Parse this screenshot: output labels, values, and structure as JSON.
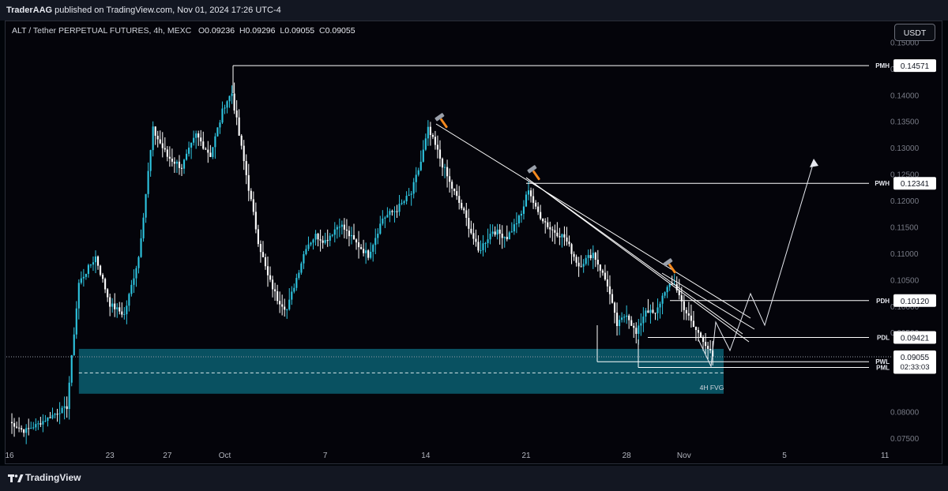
{
  "header": {
    "publisher": "TraderAAG",
    "published_text": "published on TradingView.com, Nov 01, 2024 17:26 UTC-4"
  },
  "symbol_bar": {
    "symbol": "ALT / Tether PERPETUAL FUTURES, 4h, MEXC",
    "open_key": "O",
    "open": "0.09236",
    "high_key": "H",
    "high": "0.09296",
    "low_key": "L",
    "low": "0.09055",
    "close_key": "C",
    "close": "0.09055"
  },
  "currency_button": "USDT",
  "footer": {
    "brand": "TradingView"
  },
  "colors": {
    "bg": "#04040a",
    "candle_up": "#2ec5e0",
    "candle_down": "#ffffff",
    "fvg_zone": "#0a5a6a",
    "lines": "#ffffff",
    "hammer_handle": "#f58a1f"
  },
  "chart_data": {
    "type": "candlestick",
    "timeframe": "4h",
    "ylim": [
      0.073,
      0.1535
    ],
    "y_ticks": [
      "0.15000",
      "0.14500",
      "0.14000",
      "0.13500",
      "0.13000",
      "0.12500",
      "0.12000",
      "0.11500",
      "0.11000",
      "0.10500",
      "0.10000",
      "0.09500",
      "0.08000",
      "0.07500"
    ],
    "x_ticks": [
      "16",
      "23",
      "27",
      "Oct",
      "7",
      "14",
      "21",
      "28",
      "Nov",
      "5",
      "11"
    ],
    "x_tick_index": [
      0,
      42,
      66,
      90,
      132,
      174,
      216,
      258,
      282,
      324,
      366
    ],
    "last_index": 294,
    "approx_close_path": [
      [
        0,
        0.0782
      ],
      [
        6,
        0.0765
      ],
      [
        12,
        0.0778
      ],
      [
        18,
        0.0795
      ],
      [
        24,
        0.081
      ],
      [
        29,
        0.1045
      ],
      [
        36,
        0.1095
      ],
      [
        42,
        0.1005
      ],
      [
        48,
        0.0985
      ],
      [
        54,
        0.1095
      ],
      [
        60,
        0.1335
      ],
      [
        66,
        0.1285
      ],
      [
        72,
        0.1265
      ],
      [
        78,
        0.1325
      ],
      [
        84,
        0.1288
      ],
      [
        90,
        0.1385
      ],
      [
        93,
        0.1405
      ],
      [
        96,
        0.1325
      ],
      [
        100,
        0.1225
      ],
      [
        104,
        0.1125
      ],
      [
        108,
        0.1058
      ],
      [
        112,
        0.1015
      ],
      [
        116,
        0.0995
      ],
      [
        120,
        0.1055
      ],
      [
        124,
        0.1115
      ],
      [
        128,
        0.1135
      ],
      [
        132,
        0.1125
      ],
      [
        138,
        0.1158
      ],
      [
        144,
        0.1125
      ],
      [
        150,
        0.1098
      ],
      [
        156,
        0.1168
      ],
      [
        162,
        0.1185
      ],
      [
        168,
        0.1215
      ],
      [
        172,
        0.1275
      ],
      [
        175,
        0.1335
      ],
      [
        178,
        0.1305
      ],
      [
        184,
        0.1235
      ],
      [
        190,
        0.1178
      ],
      [
        196,
        0.1105
      ],
      [
        202,
        0.1145
      ],
      [
        208,
        0.1132
      ],
      [
        214,
        0.1175
      ],
      [
        217,
        0.1225
      ],
      [
        220,
        0.1185
      ],
      [
        226,
        0.1148
      ],
      [
        232,
        0.1132
      ],
      [
        238,
        0.1078
      ],
      [
        244,
        0.1102
      ],
      [
        250,
        0.1042
      ],
      [
        254,
        0.0965
      ],
      [
        258,
        0.0988
      ],
      [
        262,
        0.0948
      ],
      [
        266,
        0.0995
      ],
      [
        270,
        0.0985
      ],
      [
        274,
        0.1032
      ],
      [
        278,
        0.1045
      ],
      [
        282,
        0.0998
      ],
      [
        286,
        0.0962
      ],
      [
        290,
        0.0938
      ],
      [
        294,
        0.09055
      ]
    ],
    "levels": [
      {
        "label": "PMH",
        "value": "0.14571",
        "y": 0.14571
      },
      {
        "label": "PWH",
        "value": "0.12341",
        "y": 0.12341
      },
      {
        "label": "PDH",
        "value": "0.10120",
        "y": 0.1012
      },
      {
        "label": "PDL",
        "value": "0.09421",
        "y": 0.09421
      },
      {
        "label": "PWL",
        "value": "0.08962",
        "y": 0.08962
      },
      {
        "label": "PML",
        "value": "0.08852",
        "y": 0.08852
      }
    ],
    "current_price": {
      "value": "0.09055",
      "countdown": "02:33:03",
      "y": 0.09055
    },
    "fvg": {
      "label": "4H FVG",
      "top": 0.09205,
      "bottom": 0.08355,
      "mid": 0.0875
    }
  }
}
